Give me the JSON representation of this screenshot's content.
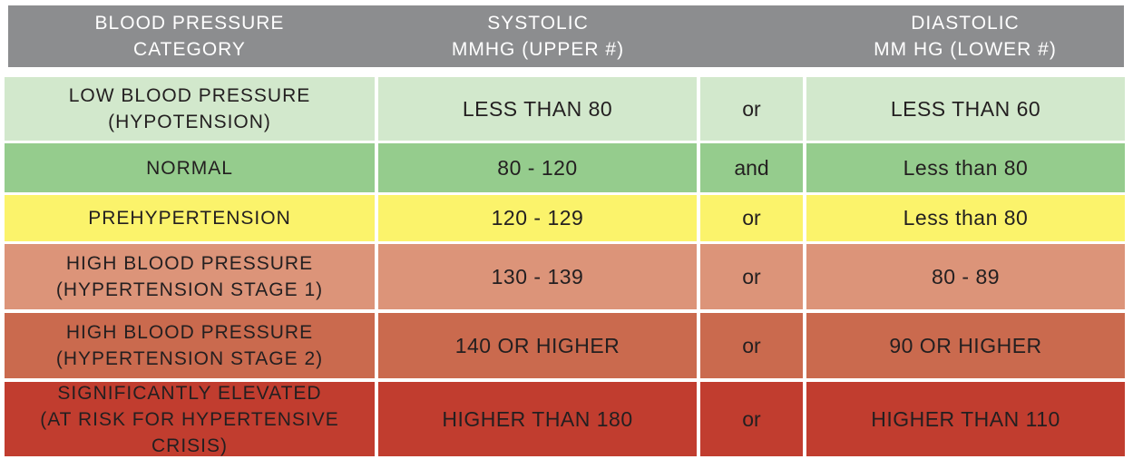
{
  "chart_data": {
    "type": "table",
    "columns": [
      "BLOOD PRESSURE\nCATEGORY",
      "SYSTOLIC\nMMHG (UPPER #)",
      "",
      "DIASTOLIC\nMM HG (LOWER #)"
    ],
    "rows": [
      {
        "category": "LOW BLOOD PRESSURE\n(HYPOTENSION)",
        "systolic": "LESS THAN 80",
        "conjunction": "or",
        "diastolic": "LESS THAN 60",
        "color": "#d2e8cc"
      },
      {
        "category": "NORMAL",
        "systolic": "80 - 120",
        "conjunction": "and",
        "diastolic": "Less than 80",
        "color": "#95cc8d"
      },
      {
        "category": "PREHYPERTENSION",
        "systolic": "120 - 129",
        "conjunction": "or",
        "diastolic": "Less than 80",
        "color": "#fbf36b"
      },
      {
        "category": "HIGH BLOOD PRESSURE\n(HYPERTENSION STAGE 1)",
        "systolic": "130 - 139",
        "conjunction": "or",
        "diastolic": "80 - 89",
        "color": "#dc9479"
      },
      {
        "category": "HIGH BLOOD PRESSURE\n(HYPERTENSION STAGE 2)",
        "systolic": "140 OR HIGHER",
        "conjunction": "or",
        "diastolic": "90 OR HIGHER",
        "color": "#ca6a4e"
      },
      {
        "category": "SIGNIFICANTLY ELEVATED\n(AT RISK FOR HYPERTENSIVE CRISIS)",
        "systolic": "HIGHER THAN 180",
        "conjunction": "or",
        "diastolic": "HIGHER THAN 110",
        "color": "#c13d2f"
      }
    ],
    "header_color": "#8c8d8f"
  }
}
